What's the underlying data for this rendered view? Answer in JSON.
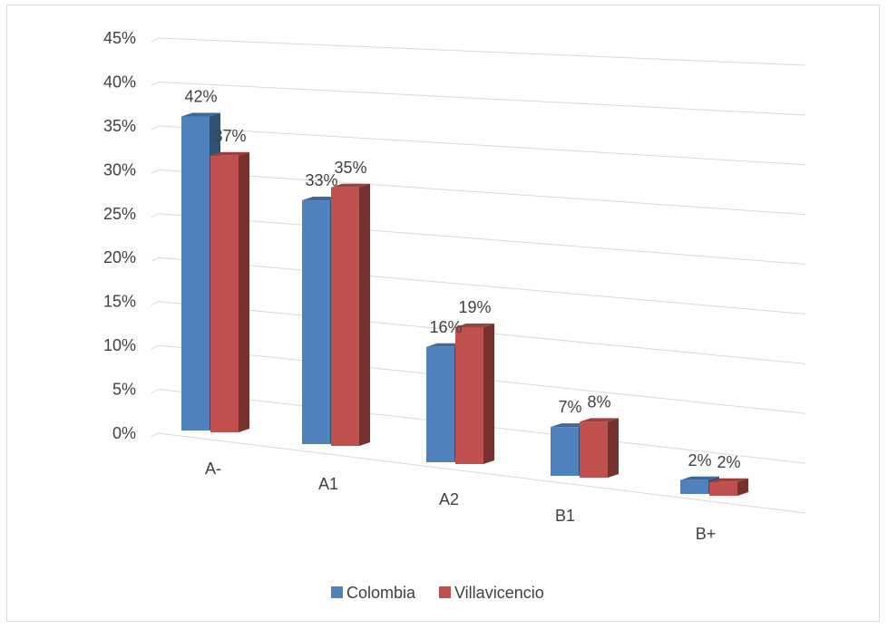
{
  "chart_data": {
    "type": "bar",
    "variant": "3d-clustered-column",
    "categories": [
      "A-",
      "A1",
      "A2",
      "B1",
      "B+"
    ],
    "series": [
      {
        "name": "Colombia",
        "values": [
          42,
          33,
          16,
          7,
          2
        ],
        "labels": [
          "42%",
          "33%",
          "16%",
          "7%",
          "2%"
        ],
        "color": "#4f81bd"
      },
      {
        "name": "Villavicencio",
        "values": [
          37,
          35,
          19,
          8,
          2
        ],
        "labels": [
          "37%",
          "35%",
          "19%",
          "8%",
          "2%"
        ],
        "color": "#c0504d"
      }
    ],
    "y_ticks": [
      "0%",
      "5%",
      "10%",
      "15%",
      "20%",
      "25%",
      "30%",
      "35%",
      "40%",
      "45%"
    ],
    "ylim": [
      0,
      45
    ],
    "ylabel_unit": "%",
    "grid": true,
    "legend_position": "bottom"
  }
}
